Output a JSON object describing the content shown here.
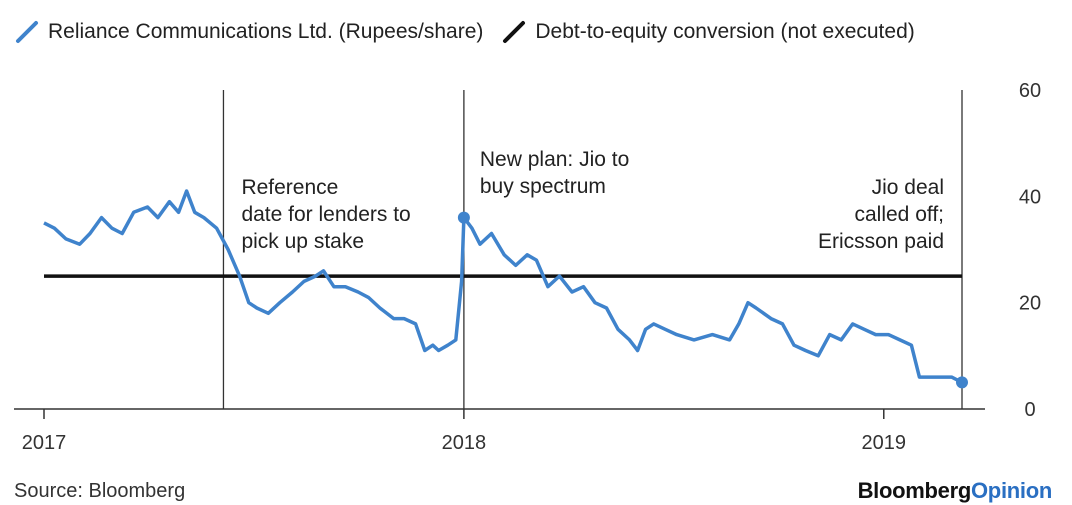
{
  "legend": [
    {
      "label": "Reliance Communications Ltd. (Rupees/share)",
      "color": "#3f83cc"
    },
    {
      "label": "Debt-to-equity conversion (not executed)",
      "color": "#111111"
    }
  ],
  "source": "Source: Bloomberg",
  "brand": {
    "part1": "Bloomberg",
    "part2": "Opinion"
  },
  "chart_data": {
    "type": "line",
    "title": "",
    "xlabel": "",
    "ylabel": "",
    "x_range": [
      "2017-01-01",
      "2019-03-15"
    ],
    "ylim": [
      0,
      60
    ],
    "y_ticks": [
      0,
      20,
      40,
      60
    ],
    "x_ticks": [
      {
        "date": "2017-01-01",
        "label": "2017"
      },
      {
        "date": "2018-01-01",
        "label": "2018"
      },
      {
        "date": "2019-01-01",
        "label": "2019"
      }
    ],
    "y_axis_side": "right",
    "grid": false,
    "legend_position": "top-left",
    "series": [
      {
        "name": "Reliance Communications Ltd. (Rupees/share)",
        "color": "#3f83cc",
        "points": [
          [
            "2017-01-01",
            35
          ],
          [
            "2017-01-10",
            34
          ],
          [
            "2017-01-20",
            32
          ],
          [
            "2017-02-01",
            31
          ],
          [
            "2017-02-10",
            33
          ],
          [
            "2017-02-20",
            36
          ],
          [
            "2017-03-01",
            34
          ],
          [
            "2017-03-10",
            33
          ],
          [
            "2017-03-20",
            37
          ],
          [
            "2017-04-01",
            38
          ],
          [
            "2017-04-10",
            36
          ],
          [
            "2017-04-20",
            39
          ],
          [
            "2017-04-28",
            37
          ],
          [
            "2017-05-05",
            41
          ],
          [
            "2017-05-12",
            37
          ],
          [
            "2017-05-20",
            36
          ],
          [
            "2017-05-31",
            34
          ],
          [
            "2017-06-10",
            30
          ],
          [
            "2017-06-20",
            25
          ],
          [
            "2017-06-28",
            20
          ],
          [
            "2017-07-05",
            19
          ],
          [
            "2017-07-15",
            18
          ],
          [
            "2017-07-25",
            20
          ],
          [
            "2017-08-05",
            22
          ],
          [
            "2017-08-15",
            24
          ],
          [
            "2017-08-25",
            25
          ],
          [
            "2017-09-01",
            26
          ],
          [
            "2017-09-10",
            23
          ],
          [
            "2017-09-20",
            23
          ],
          [
            "2017-10-01",
            22
          ],
          [
            "2017-10-10",
            21
          ],
          [
            "2017-10-20",
            19
          ],
          [
            "2017-11-01",
            17
          ],
          [
            "2017-11-10",
            17
          ],
          [
            "2017-11-20",
            16
          ],
          [
            "2017-11-28",
            11
          ],
          [
            "2017-12-05",
            12
          ],
          [
            "2017-12-10",
            11
          ],
          [
            "2017-12-18",
            12
          ],
          [
            "2017-12-25",
            13
          ],
          [
            "2017-12-30",
            24
          ],
          [
            "2018-01-01",
            36
          ],
          [
            "2018-01-08",
            34
          ],
          [
            "2018-01-15",
            31
          ],
          [
            "2018-01-25",
            33
          ],
          [
            "2018-02-05",
            29
          ],
          [
            "2018-02-15",
            27
          ],
          [
            "2018-02-25",
            29
          ],
          [
            "2018-03-05",
            28
          ],
          [
            "2018-03-15",
            23
          ],
          [
            "2018-03-25",
            25
          ],
          [
            "2018-04-05",
            22
          ],
          [
            "2018-04-15",
            23
          ],
          [
            "2018-04-25",
            20
          ],
          [
            "2018-05-05",
            19
          ],
          [
            "2018-05-15",
            15
          ],
          [
            "2018-05-25",
            13
          ],
          [
            "2018-06-01",
            11
          ],
          [
            "2018-06-08",
            15
          ],
          [
            "2018-06-15",
            16
          ],
          [
            "2018-06-25",
            15
          ],
          [
            "2018-07-05",
            14
          ],
          [
            "2018-07-20",
            13
          ],
          [
            "2018-08-05",
            14
          ],
          [
            "2018-08-20",
            13
          ],
          [
            "2018-08-28",
            16
          ],
          [
            "2018-09-05",
            20
          ],
          [
            "2018-09-12",
            19
          ],
          [
            "2018-09-25",
            17
          ],
          [
            "2018-10-05",
            16
          ],
          [
            "2018-10-15",
            12
          ],
          [
            "2018-10-25",
            11
          ],
          [
            "2018-11-05",
            10
          ],
          [
            "2018-11-15",
            14
          ],
          [
            "2018-11-25",
            13
          ],
          [
            "2018-12-05",
            16
          ],
          [
            "2018-12-15",
            15
          ],
          [
            "2018-12-25",
            14
          ],
          [
            "2019-01-05",
            14
          ],
          [
            "2019-01-15",
            13
          ],
          [
            "2019-01-25",
            12
          ],
          [
            "2019-02-01",
            6
          ],
          [
            "2019-02-10",
            6
          ],
          [
            "2019-02-20",
            6
          ],
          [
            "2019-03-01",
            6
          ],
          [
            "2019-03-10",
            5
          ]
        ]
      },
      {
        "name": "Debt-to-equity conversion (not executed)",
        "color": "#111111",
        "points": [
          [
            "2017-01-01",
            25
          ],
          [
            "2019-03-10",
            25
          ]
        ]
      }
    ],
    "markers": [
      {
        "date": "2018-01-01",
        "value": 36
      },
      {
        "date": "2019-03-10",
        "value": 5
      }
    ],
    "annotations": [
      {
        "date": "2017-06-06",
        "lines": [
          "Reference",
          "date for lenders to",
          "pick up stake"
        ],
        "align": "start"
      },
      {
        "date": "2018-01-01",
        "lines": [
          "New plan: Jio to",
          "buy spectrum"
        ],
        "align": "start"
      },
      {
        "date": "2019-03-10",
        "lines": [
          "Jio deal",
          "called off;",
          "Ericsson paid"
        ],
        "align": "end"
      }
    ]
  }
}
